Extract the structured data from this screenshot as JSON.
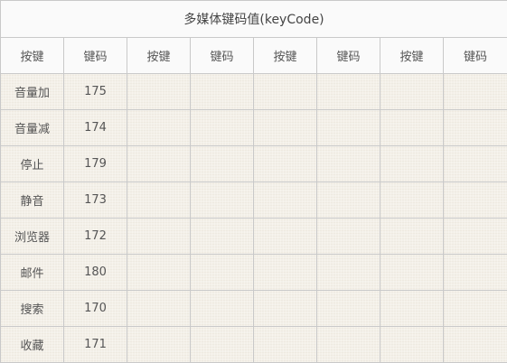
{
  "table": {
    "caption": "多媒体键码值(keyCode)",
    "headers": [
      "按键",
      "键码",
      "按键",
      "键码",
      "按键",
      "键码",
      "按键",
      "键码"
    ],
    "rows": [
      {
        "key": "音量加",
        "code": "175"
      },
      {
        "key": "音量减",
        "code": "174"
      },
      {
        "key": "停止",
        "code": "179"
      },
      {
        "key": "静音",
        "code": "173"
      },
      {
        "key": "浏览器",
        "code": "172"
      },
      {
        "key": "邮件",
        "code": "180"
      },
      {
        "key": "搜索",
        "code": "170"
      },
      {
        "key": "收藏",
        "code": "171"
      }
    ]
  },
  "colors": {
    "border": "#c9c9c9",
    "header_bg": "#fafafa",
    "body_bg": "#f4f0e8",
    "text": "#555555"
  }
}
